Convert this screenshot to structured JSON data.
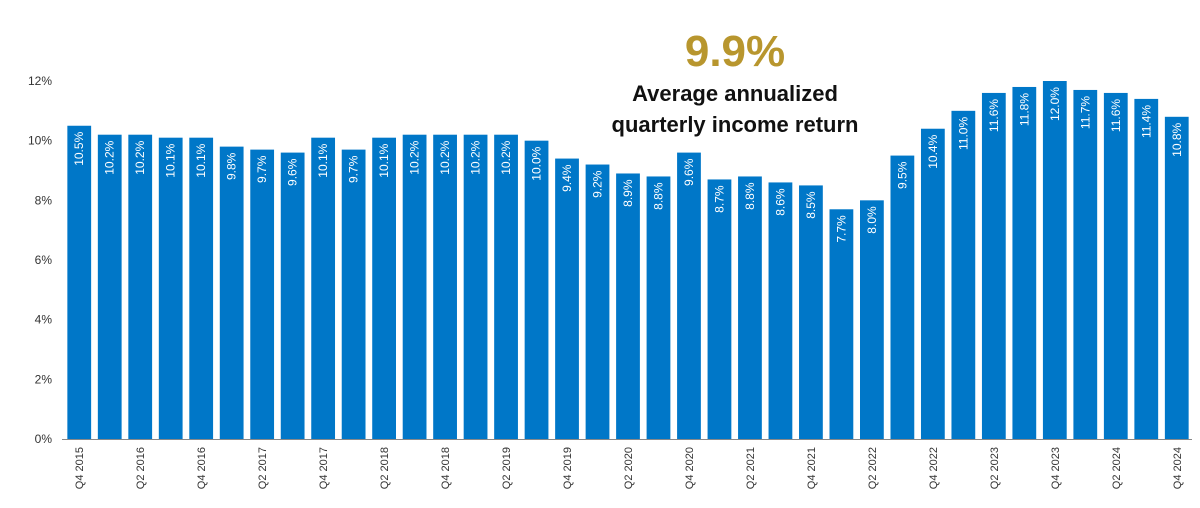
{
  "colors": {
    "bar": "#0077C8",
    "highlight": "#B8962E",
    "axis": "#333333",
    "label": "#ffffff"
  },
  "callout": {
    "value": "9.9%",
    "text_line1": "Average annualized",
    "text_line2": "quarterly income return"
  },
  "chart_data": {
    "type": "bar",
    "categories": [
      "Q4 2015",
      "Q1 2016",
      "Q2 2016",
      "Q3 2016",
      "Q4 2016",
      "Q1 2017",
      "Q2 2017",
      "Q3 2017",
      "Q4 2017",
      "Q1 2018",
      "Q2 2018",
      "Q3 2018",
      "Q4 2018",
      "Q1 2019",
      "Q2 2019",
      "Q3 2019",
      "Q4 2019",
      "Q1 2020",
      "Q2 2020",
      "Q3 2020",
      "Q4 2020",
      "Q1 2021",
      "Q2 2021",
      "Q3 2021",
      "Q4 2021",
      "Q1 2022",
      "Q2 2022",
      "Q3 2022",
      "Q4 2022",
      "Q1 2023",
      "Q2 2023",
      "Q3 2023",
      "Q4 2023",
      "Q1 2024",
      "Q2 2024",
      "Q3 2024",
      "Q4 2024"
    ],
    "tick_labels": [
      "Q4 2015",
      "",
      "Q2 2016",
      "",
      "Q4 2016",
      "",
      "Q2 2017",
      "",
      "Q4 2017",
      "",
      "Q2 2018",
      "",
      "Q4 2018",
      "",
      "Q2 2019",
      "",
      "Q4 2019",
      "",
      "Q2 2020",
      "",
      "Q4 2020",
      "",
      "Q2 2021",
      "",
      "Q4 2021",
      "",
      "Q2 2022",
      "",
      "Q4 2022",
      "",
      "Q2 2023",
      "",
      "Q4 2023",
      "",
      "Q2 2024",
      "",
      "Q4 2024"
    ],
    "values": [
      10.5,
      10.2,
      10.2,
      10.1,
      10.1,
      9.8,
      9.7,
      9.6,
      10.1,
      9.7,
      10.1,
      10.2,
      10.2,
      10.2,
      10.2,
      10.0,
      9.4,
      9.2,
      8.9,
      8.8,
      9.6,
      8.7,
      8.8,
      8.6,
      8.5,
      7.7,
      8.0,
      9.5,
      10.4,
      11.0,
      11.6,
      11.8,
      12.0,
      11.7,
      11.6,
      11.4,
      10.8
    ],
    "data_labels": [
      "10.5%",
      "10.2%",
      "10.2%",
      "10.1%",
      "10.1%",
      "9.8%",
      "9.7%",
      "9.6%",
      "10.1%",
      "9.7%",
      "10.1%",
      "10.2%",
      "10.2%",
      "10.2%",
      "10.2%",
      "10.0%",
      "9.4%",
      "9.2%",
      "8.9%",
      "8.8%",
      "9.6%",
      "8.7%",
      "8.8%",
      "8.6%",
      "8.5%",
      "7.7%",
      "8.0%",
      "9.5%",
      "10.4%",
      "11.0%",
      "11.6%",
      "11.8%",
      "12.0%",
      "11.7%",
      "11.6%",
      "11.4%",
      "10.8%"
    ],
    "ylim": [
      0,
      12
    ],
    "yticks": [
      "0%",
      "2%",
      "4%",
      "6%",
      "8%",
      "10%",
      "12%"
    ],
    "grid": false
  }
}
